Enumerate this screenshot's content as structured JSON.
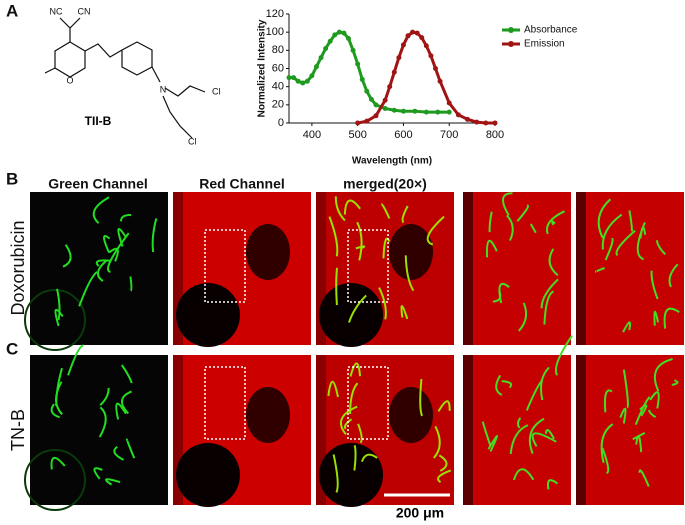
{
  "chart_data": {
    "type": "line",
    "x_label": "Wavelength (nm)",
    "y_label": "Normalized Intensity",
    "xlim": [
      350,
      800
    ],
    "xticks": [
      400,
      500,
      600,
      700,
      800
    ],
    "ylim": [
      0,
      120
    ],
    "yticks": [
      0,
      20,
      40,
      60,
      80,
      100,
      120
    ],
    "legend": "upper right",
    "series": [
      {
        "name": "Absorbance",
        "color": "#1e9a1e",
        "x": [
          350,
          360,
          370,
          380,
          390,
          400,
          410,
          420,
          430,
          440,
          450,
          460,
          470,
          480,
          490,
          500,
          510,
          520,
          530,
          540,
          560,
          580,
          600,
          625,
          650,
          675,
          700
        ],
        "values": [
          50,
          50,
          46,
          44,
          46,
          52,
          62,
          72,
          82,
          90,
          97,
          100,
          99,
          93,
          80,
          65,
          48,
          35,
          26,
          20,
          16,
          14,
          13,
          13,
          12,
          12,
          12
        ]
      },
      {
        "name": "Emission",
        "color": "#a01414",
        "x": [
          500,
          520,
          540,
          560,
          570,
          580,
          590,
          600,
          610,
          620,
          630,
          640,
          650,
          660,
          670,
          680,
          700,
          720,
          740,
          760,
          780,
          800
        ],
        "values": [
          0,
          2,
          8,
          25,
          40,
          56,
          72,
          86,
          96,
          100,
          99,
          94,
          85,
          74,
          60,
          46,
          22,
          9,
          4,
          1,
          0,
          0
        ]
      }
    ]
  },
  "panels": {
    "a": "A",
    "b": "B",
    "c": "C"
  },
  "molecule": {
    "name": "TII-B",
    "atoms": [
      "NC",
      "CN",
      "O",
      "N",
      "Cl",
      "Cl"
    ]
  },
  "columns": [
    "Green Channel",
    "Red Channel",
    "merged(20×)"
  ],
  "rows": [
    "Doxorubicin",
    "TN-B"
  ],
  "scale_bar": "200 μm"
}
